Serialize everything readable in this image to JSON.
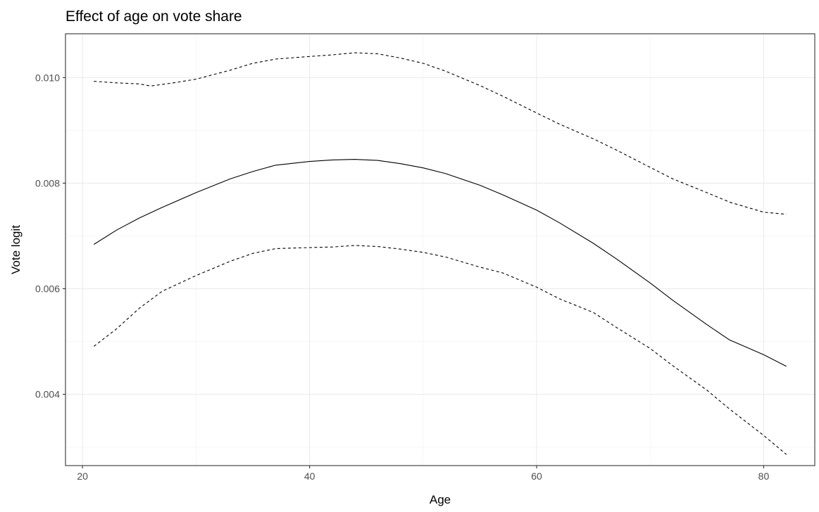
{
  "chart_data": {
    "type": "line",
    "title": "Effect of age on vote share",
    "xlabel": "Age",
    "ylabel": "Vote logit",
    "xlim": [
      18.5,
      84.5
    ],
    "ylim": [
      0.00265,
      0.01083
    ],
    "x_ticks": [
      20,
      40,
      60,
      80
    ],
    "x_minor_ticks": [
      30,
      50,
      70
    ],
    "y_ticks": [
      0.004,
      0.006,
      0.008,
      0.01
    ],
    "y_minor_ticks": [
      0.003,
      0.005,
      0.007,
      0.009
    ],
    "x_tick_labels": [
      "20",
      "40",
      "60",
      "80"
    ],
    "y_tick_labels": [
      "0.004",
      "0.006",
      "0.008",
      "0.010"
    ],
    "grid": true,
    "legend": "none",
    "colors": {
      "line": "#000000",
      "grid": "#ebebeb",
      "border": "#333333"
    },
    "series": [
      {
        "line_style": "dashed",
        "x": [
          21,
          23,
          25,
          26,
          28,
          30,
          33,
          35,
          37,
          40,
          42,
          44,
          46,
          48,
          50,
          52,
          55,
          57,
          60,
          62,
          65,
          67,
          70,
          72,
          75,
          77,
          80,
          82
        ],
        "y": [
          0.00993,
          0.0099,
          0.00988,
          0.00984,
          0.0099,
          0.00997,
          0.01014,
          0.01027,
          0.01035,
          0.0104,
          0.01043,
          0.01047,
          0.01045,
          0.01037,
          0.01027,
          0.01012,
          0.00985,
          0.00965,
          0.00933,
          0.00912,
          0.00884,
          0.00863,
          0.0083,
          0.00808,
          0.00782,
          0.00764,
          0.00745,
          0.00741
        ]
      },
      {
        "line_style": "solid",
        "x": [
          21,
          23,
          25,
          27,
          30,
          33,
          35,
          37,
          40,
          42,
          44,
          46,
          48,
          50,
          52,
          55,
          57,
          60,
          62,
          65,
          67,
          70,
          72,
          75,
          77,
          80,
          82
        ],
        "y": [
          0.00684,
          0.00711,
          0.00734,
          0.00754,
          0.00782,
          0.00808,
          0.00822,
          0.00834,
          0.00841,
          0.00844,
          0.00845,
          0.00843,
          0.00837,
          0.00829,
          0.00818,
          0.00796,
          0.00778,
          0.00749,
          0.00725,
          0.00686,
          0.00657,
          0.00611,
          0.00578,
          0.00532,
          0.00503,
          0.00475,
          0.00453
        ]
      },
      {
        "line_style": "dashed",
        "x": [
          21,
          23,
          25,
          27,
          30,
          33,
          35,
          37,
          40,
          42,
          44,
          46,
          48,
          50,
          52,
          55,
          57,
          60,
          62,
          65,
          67,
          70,
          72,
          75,
          77,
          80,
          82
        ],
        "y": [
          0.00491,
          0.00524,
          0.00563,
          0.00595,
          0.00625,
          0.00652,
          0.00667,
          0.00676,
          0.00678,
          0.00679,
          0.00682,
          0.0068,
          0.00675,
          0.00669,
          0.0066,
          0.00641,
          0.0063,
          0.00603,
          0.00581,
          0.00555,
          0.00527,
          0.00487,
          0.00454,
          0.00408,
          0.00372,
          0.00322,
          0.00286
        ]
      }
    ]
  }
}
